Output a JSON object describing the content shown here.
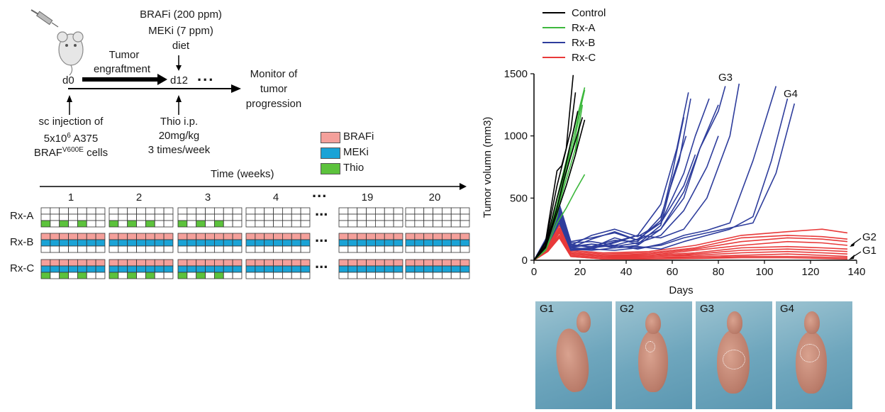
{
  "schematic": {
    "drug_line1": "BRAFi (200 ppm)",
    "drug_line2": "MEKi (7 ppm)",
    "drug_line3": "diet",
    "engraft_line1": "Tumor",
    "engraft_line2": "engraftment",
    "d0": "d0",
    "d12": "d12",
    "dots": "...",
    "monitor_line1": "Monitor of",
    "monitor_line2": "tumor",
    "monitor_line3": "progression",
    "inj_line1": "sc injection of",
    "inj_line2_pre": "5x10",
    "inj_line2_sup": "6",
    "inj_line2_post": " A375",
    "inj_line3_pre": "BRAF",
    "inj_line3_sup": "V600E",
    "inj_line3_post": " cells",
    "thio_line1": "Thio i.p.",
    "thio_line2": "20mg/kg",
    "thio_line3": "3 times/week"
  },
  "treatment_legend": [
    {
      "label": "BRAFi",
      "color": "#f4a09b"
    },
    {
      "label": "MEKi",
      "color": "#1aa3d6"
    },
    {
      "label": "Thio",
      "color": "#5cc23c"
    }
  ],
  "timeline": {
    "title": "Time (weeks)",
    "weeks": [
      "1",
      "2",
      "3",
      "4",
      "...",
      "19",
      "20"
    ],
    "rows": [
      {
        "label": "Rx-A",
        "scheme": "thio_only"
      },
      {
        "label": "Rx-B",
        "scheme": "braf_mek"
      },
      {
        "label": "Rx-C",
        "scheme": "braf_mek_thio"
      }
    ],
    "row_ellipsis": "..."
  },
  "chart_data": {
    "type": "line",
    "xlabel": "Days",
    "ylabel": "Tumor volumn (mm3)",
    "xlim": [
      0,
      140
    ],
    "ylim": [
      0,
      1500
    ],
    "xticks": [
      0,
      20,
      40,
      60,
      80,
      100,
      120,
      140
    ],
    "yticks": [
      0,
      500,
      1000,
      1500
    ],
    "legend_position": "top-left",
    "groups": [
      {
        "name": "Control",
        "color": "#000000"
      },
      {
        "name": "Rx-A",
        "color": "#3db83d"
      },
      {
        "name": "Rx-B",
        "color": "#2e3d9c"
      },
      {
        "name": "Rx-C",
        "color": "#e83a3a"
      }
    ],
    "annotations": [
      "G3",
      "G4",
      "G2",
      "G1"
    ],
    "series": [
      {
        "group": "Control",
        "x": [
          0,
          5,
          10,
          12,
          14,
          17
        ],
        "y": [
          0,
          150,
          720,
          760,
          900,
          1490
        ]
      },
      {
        "group": "Control",
        "x": [
          0,
          5,
          10,
          13,
          16,
          18
        ],
        "y": [
          0,
          140,
          600,
          820,
          1050,
          1350
        ]
      },
      {
        "group": "Control",
        "x": [
          0,
          5,
          10,
          13,
          16,
          19
        ],
        "y": [
          0,
          120,
          500,
          700,
          950,
          1200
        ]
      },
      {
        "group": "Control",
        "x": [
          0,
          5,
          10,
          13,
          17,
          21
        ],
        "y": [
          0,
          110,
          420,
          650,
          900,
          1150
        ]
      },
      {
        "group": "Control",
        "x": [
          0,
          5,
          10,
          14,
          18,
          22
        ],
        "y": [
          0,
          100,
          380,
          600,
          850,
          1130
        ]
      },
      {
        "group": "Rx-A",
        "x": [
          0,
          5,
          10,
          14,
          18,
          22
        ],
        "y": [
          0,
          120,
          500,
          800,
          1100,
          1390
        ]
      },
      {
        "group": "Rx-A",
        "x": [
          0,
          5,
          10,
          14,
          18,
          22
        ],
        "y": [
          0,
          110,
          450,
          750,
          1050,
          1370
        ]
      },
      {
        "group": "Rx-A",
        "x": [
          0,
          5,
          10,
          14,
          18,
          21
        ],
        "y": [
          0,
          100,
          420,
          700,
          1000,
          1300
        ]
      },
      {
        "group": "Rx-A",
        "x": [
          0,
          5,
          10,
          14,
          18,
          21
        ],
        "y": [
          0,
          90,
          400,
          650,
          900,
          1250
        ]
      },
      {
        "group": "Rx-A",
        "x": [
          0,
          5,
          10,
          14,
          18,
          20
        ],
        "y": [
          0,
          90,
          380,
          600,
          850,
          1100
        ]
      },
      {
        "group": "Rx-A",
        "x": [
          0,
          5,
          10,
          14,
          18,
          22
        ],
        "y": [
          0,
          80,
          300,
          420,
          560,
          690
        ]
      },
      {
        "group": "Rx-A",
        "x": [
          0,
          5,
          10,
          12,
          14,
          16
        ],
        "y": [
          0,
          100,
          350,
          550,
          700,
          900
        ]
      },
      {
        "group": "Rx-B",
        "x": [
          0,
          6,
          11,
          16,
          25,
          35,
          45,
          55,
          65,
          72,
          80,
          83
        ],
        "y": [
          0,
          200,
          450,
          150,
          180,
          220,
          160,
          250,
          500,
          900,
          1200,
          1400
        ]
      },
      {
        "group": "Rx-B",
        "x": [
          0,
          6,
          11,
          16,
          25,
          35,
          45,
          55,
          65,
          70,
          76
        ],
        "y": [
          0,
          180,
          420,
          140,
          150,
          120,
          170,
          300,
          700,
          1000,
          1300
        ]
      },
      {
        "group": "Rx-B",
        "x": [
          0,
          6,
          11,
          16,
          25,
          35,
          45,
          55,
          62,
          67
        ],
        "y": [
          0,
          170,
          400,
          130,
          100,
          140,
          200,
          450,
          900,
          1350
        ]
      },
      {
        "group": "Rx-B",
        "x": [
          0,
          6,
          11,
          16,
          25,
          35,
          45,
          55,
          63,
          68
        ],
        "y": [
          0,
          160,
          380,
          120,
          110,
          160,
          150,
          350,
          800,
          1300
        ]
      },
      {
        "group": "Rx-B",
        "x": [
          0,
          6,
          11,
          16,
          25,
          35,
          45,
          55,
          65,
          72,
          80
        ],
        "y": [
          0,
          150,
          360,
          110,
          130,
          100,
          120,
          250,
          550,
          900,
          1250
        ]
      },
      {
        "group": "Rx-B",
        "x": [
          0,
          6,
          11,
          16,
          25,
          35,
          45,
          55,
          65,
          75,
          85,
          89
        ],
        "y": [
          0,
          160,
          370,
          100,
          90,
          150,
          200,
          180,
          250,
          500,
          1000,
          1420
        ]
      },
      {
        "group": "Rx-B",
        "x": [
          0,
          6,
          11,
          16,
          25,
          35,
          45,
          55,
          60,
          65
        ],
        "y": [
          0,
          150,
          350,
          100,
          170,
          230,
          160,
          320,
          700,
          1150
        ]
      },
      {
        "group": "Rx-B",
        "x": [
          0,
          6,
          11,
          16,
          25,
          35,
          45,
          55,
          60,
          66
        ],
        "y": [
          0,
          140,
          340,
          90,
          100,
          180,
          130,
          280,
          650,
          1000
        ]
      },
      {
        "group": "Rx-B",
        "x": [
          0,
          6,
          11,
          16,
          25,
          35,
          45,
          55,
          65,
          75,
          85,
          95,
          105
        ],
        "y": [
          0,
          150,
          330,
          80,
          100,
          120,
          90,
          130,
          200,
          240,
          300,
          800,
          1400
        ]
      },
      {
        "group": "Rx-B",
        "x": [
          0,
          6,
          11,
          16,
          25,
          35,
          45,
          55,
          65,
          75,
          85,
          95,
          103,
          110
        ],
        "y": [
          0,
          140,
          320,
          90,
          80,
          100,
          110,
          90,
          150,
          200,
          250,
          350,
          800,
          1300
        ]
      },
      {
        "group": "Rx-B",
        "x": [
          0,
          6,
          11,
          16,
          25,
          35,
          45,
          55,
          65,
          75,
          85,
          95,
          105,
          113
        ],
        "y": [
          0,
          130,
          300,
          80,
          90,
          80,
          100,
          120,
          180,
          220,
          260,
          300,
          700,
          1260
        ]
      },
      {
        "group": "Rx-B",
        "x": [
          0,
          6,
          11,
          16,
          25,
          35,
          45,
          55,
          65,
          75,
          80
        ],
        "y": [
          0,
          150,
          350,
          100,
          130,
          110,
          140,
          200,
          400,
          750,
          1000
        ]
      },
      {
        "group": "Rx-B",
        "x": [
          0,
          6,
          11,
          16,
          25,
          35,
          45,
          55,
          65,
          70
        ],
        "y": [
          0,
          140,
          320,
          120,
          200,
          250,
          190,
          300,
          600,
          850
        ]
      },
      {
        "group": "Rx-C",
        "x": [
          0,
          6,
          11,
          16,
          30,
          50,
          70,
          90,
          110,
          125,
          136
        ],
        "y": [
          0,
          120,
          300,
          80,
          60,
          70,
          120,
          200,
          230,
          250,
          220
        ]
      },
      {
        "group": "Rx-C",
        "x": [
          0,
          6,
          11,
          16,
          30,
          50,
          70,
          90,
          110,
          125,
          136
        ],
        "y": [
          0,
          110,
          280,
          70,
          50,
          60,
          100,
          180,
          200,
          190,
          170
        ]
      },
      {
        "group": "Rx-C",
        "x": [
          0,
          6,
          11,
          16,
          30,
          50,
          70,
          90,
          110,
          125,
          136
        ],
        "y": [
          0,
          100,
          260,
          60,
          40,
          50,
          90,
          150,
          180,
          170,
          150
        ]
      },
      {
        "group": "Rx-C",
        "x": [
          0,
          6,
          11,
          16,
          30,
          50,
          70,
          90,
          110,
          125,
          136
        ],
        "y": [
          0,
          100,
          250,
          60,
          40,
          40,
          80,
          120,
          150,
          140,
          120
        ]
      },
      {
        "group": "Rx-C",
        "x": [
          0,
          6,
          11,
          16,
          30,
          50,
          70,
          90,
          110,
          125,
          136
        ],
        "y": [
          0,
          90,
          240,
          50,
          30,
          40,
          60,
          100,
          110,
          100,
          90
        ]
      },
      {
        "group": "Rx-C",
        "x": [
          0,
          6,
          11,
          16,
          30,
          50,
          70,
          90,
          110,
          125,
          136
        ],
        "y": [
          0,
          90,
          230,
          50,
          30,
          30,
          50,
          80,
          90,
          80,
          70
        ]
      },
      {
        "group": "Rx-C",
        "x": [
          0,
          6,
          11,
          16,
          30,
          50,
          70,
          90,
          110,
          125,
          136
        ],
        "y": [
          0,
          80,
          220,
          40,
          20,
          30,
          40,
          60,
          70,
          60,
          50
        ]
      },
      {
        "group": "Rx-C",
        "x": [
          0,
          6,
          11,
          16,
          30,
          50,
          70,
          90,
          110,
          125,
          136
        ],
        "y": [
          0,
          80,
          200,
          40,
          20,
          20,
          30,
          40,
          50,
          40,
          30
        ]
      },
      {
        "group": "Rx-C",
        "x": [
          0,
          6,
          11,
          16,
          30,
          50,
          70,
          90,
          110,
          125,
          136
        ],
        "y": [
          0,
          70,
          190,
          30,
          10,
          20,
          20,
          30,
          30,
          25,
          20
        ]
      },
      {
        "group": "Rx-C",
        "x": [
          0,
          6,
          11,
          16,
          30,
          50,
          70,
          90,
          110,
          125,
          136
        ],
        "y": [
          0,
          70,
          180,
          30,
          10,
          10,
          15,
          20,
          20,
          15,
          10
        ]
      }
    ]
  },
  "photos": [
    {
      "label": "G1"
    },
    {
      "label": "G2"
    },
    {
      "label": "G3"
    },
    {
      "label": "G4"
    }
  ]
}
